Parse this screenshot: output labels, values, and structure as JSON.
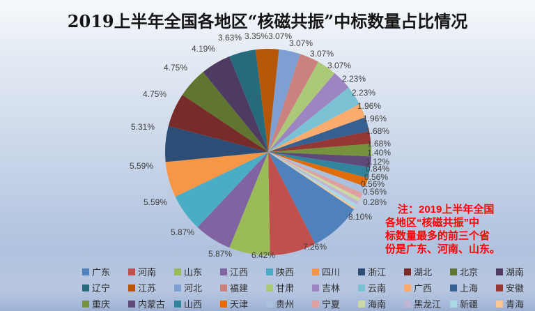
{
  "title": "2019上半年全国各地区“核磁共振”中标数量占比情况",
  "note": {
    "color": "#FF0000",
    "lines": [
      "注：2019上半年全国",
      "各地区“核磁共振”中",
      "标数量最多的前三个省",
      "份是广东、河南、山东。"
    ]
  },
  "chart_data": {
    "type": "pie",
    "title": "2019上半年全国各地区“核磁共振”中标数量占比情况",
    "legend_position": "bottom",
    "start_angle_deg": 123.7,
    "direction": "clockwise",
    "label_format": "percent",
    "series": [
      {
        "name": "广东",
        "percent": 8.1,
        "label": "8.10%",
        "color": "#4F81BD"
      },
      {
        "name": "河南",
        "percent": 7.26,
        "label": "7.26%",
        "color": "#C0504D"
      },
      {
        "name": "山东",
        "percent": 6.42,
        "label": "6.42%",
        "color": "#9BBB59"
      },
      {
        "name": "江西",
        "percent": 5.87,
        "label": "5.87%",
        "color": "#8064A2"
      },
      {
        "name": "陕西",
        "percent": 5.87,
        "label": "5.87%",
        "color": "#4BACC6"
      },
      {
        "name": "四川",
        "percent": 5.59,
        "label": "5.59%",
        "color": "#F79646"
      },
      {
        "name": "浙江",
        "percent": 5.59,
        "label": "5.59%",
        "color": "#2C4D75"
      },
      {
        "name": "湖北",
        "percent": 5.31,
        "label": "5.31%",
        "color": "#772C2A"
      },
      {
        "name": "北京",
        "percent": 4.75,
        "label": "4.75%",
        "color": "#5F7530"
      },
      {
        "name": "湖南",
        "percent": 4.75,
        "label": "4.75%",
        "color": "#4D3B62"
      },
      {
        "name": "辽宁",
        "percent": 4.19,
        "label": "4.19%",
        "color": "#276A7C"
      },
      {
        "name": "江苏",
        "percent": 3.63,
        "label": "3.63%",
        "color": "#B65708"
      },
      {
        "name": "河北",
        "percent": 3.35,
        "label": "3.35%",
        "color": "#7E9FD1"
      },
      {
        "name": "福建",
        "percent": 3.07,
        "label": "3.07%",
        "color": "#CB827E"
      },
      {
        "name": "甘肃",
        "percent": 3.07,
        "label": "3.07%",
        "color": "#ABC979"
      },
      {
        "name": "吉林",
        "percent": 3.07,
        "label": "3.07%",
        "color": "#9C85C0"
      },
      {
        "name": "云南",
        "percent": 3.07,
        "label": "3.07%",
        "color": "#79C1D3"
      },
      {
        "name": "广西",
        "percent": 2.23,
        "label": "2.23%",
        "color": "#F9AC6D"
      },
      {
        "name": "上海",
        "percent": 2.23,
        "label": "2.23%",
        "color": "#366092"
      },
      {
        "name": "安徽",
        "percent": 1.96,
        "label": "1.96%",
        "color": "#953734"
      },
      {
        "name": "重庆",
        "percent": 1.96,
        "label": "1.96%",
        "color": "#76923C"
      },
      {
        "name": "内蒙古",
        "percent": 1.68,
        "label": "1.68%",
        "color": "#5F497A"
      },
      {
        "name": "山西",
        "percent": 1.68,
        "label": "1.68%",
        "color": "#31849B"
      },
      {
        "name": "天津",
        "percent": 1.4,
        "label": "1.40%",
        "color": "#E36C0A"
      },
      {
        "name": "贵州",
        "percent": 1.12,
        "label": "1.12%",
        "color": "#A9C0DE"
      },
      {
        "name": "宁夏",
        "percent": 0.84,
        "label": "0.84%",
        "color": "#DEA19F"
      },
      {
        "name": "海南",
        "percent": 0.56,
        "label": "0.56%",
        "color": "#CBD9A3"
      },
      {
        "name": "黑龙江",
        "percent": 0.56,
        "label": "0.56%",
        "color": "#C2B4D4"
      },
      {
        "name": "新疆",
        "percent": 0.56,
        "label": "0.56%",
        "color": "#A9D9E5"
      },
      {
        "name": "青海",
        "percent": 0.28,
        "label": "0.28%",
        "color": "#FBC693"
      }
    ]
  }
}
